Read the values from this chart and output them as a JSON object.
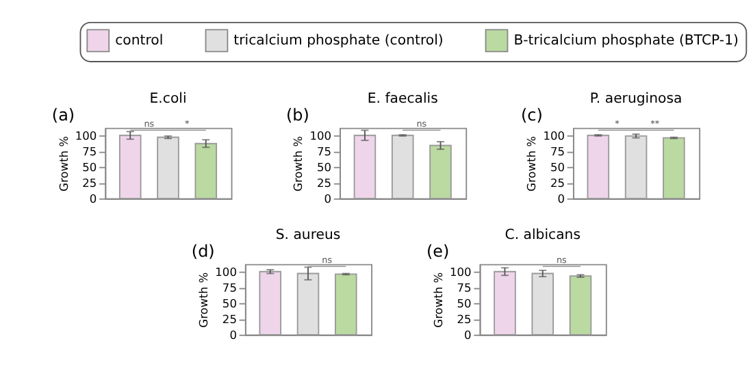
{
  "chart_data": [
    {
      "type": "bar",
      "title": "E.coli",
      "ylabel": "Growth %",
      "categories": [
        null,
        null,
        null
      ],
      "legend": "top",
      "grid": false,
      "ylim": [
        0,
        112
      ],
      "yticks": [
        0,
        25,
        50,
        75,
        100
      ],
      "series": [
        {
          "name": "control",
          "color": "#efd5ea",
          "values": [
            100,
            null,
            null
          ],
          "errors": [
            6,
            null,
            null
          ]
        },
        {
          "name": "tricalcium phosphate (control)",
          "color": "#e0e0e0",
          "values": [
            null,
            97,
            null
          ],
          "errors": [
            null,
            2,
            null
          ]
        },
        {
          "name": "B-tricalcium phosphate (BTCP-1)",
          "color": "#badaa1",
          "values": [
            null,
            null,
            87
          ],
          "errors": [
            null,
            null,
            6
          ]
        }
      ],
      "annotations": [
        "(a)",
        "ns",
        "*"
      ]
    },
    {
      "type": "bar",
      "title": "E. faecalis",
      "ylabel": "Growth %",
      "categories": [
        null,
        null,
        null
      ],
      "grid": false,
      "ylim": [
        0,
        112
      ],
      "yticks": [
        0,
        25,
        50,
        75,
        100
      ],
      "series": [
        {
          "color": "#efd5ea",
          "values": [
            100,
            null,
            null
          ],
          "errors": [
            8,
            null,
            null
          ]
        },
        {
          "color": "#e0e0e0",
          "values": [
            null,
            100,
            null
          ],
          "errors": [
            null,
            1,
            null
          ]
        },
        {
          "color": "#badaa1",
          "values": [
            null,
            null,
            84
          ],
          "errors": [
            null,
            null,
            6
          ]
        }
      ],
      "annotations": [
        "(b)",
        "ns"
      ]
    },
    {
      "type": "bar",
      "title": "P. aeruginosa",
      "ylabel": "Growth %",
      "categories": [
        null,
        null,
        null
      ],
      "grid": false,
      "ylim": [
        0,
        112
      ],
      "yticks": [
        0,
        25,
        50,
        75,
        100
      ],
      "series": [
        {
          "color": "#efd5ea",
          "values": [
            100,
            null,
            null
          ],
          "errors": [
            1,
            null,
            null
          ]
        },
        {
          "color": "#e0e0e0",
          "values": [
            null,
            99,
            null
          ],
          "errors": [
            null,
            3,
            null
          ]
        },
        {
          "color": "#badaa1",
          "values": [
            null,
            null,
            96
          ],
          "errors": [
            null,
            null,
            1
          ]
        }
      ],
      "annotations": [
        "(c)",
        "*",
        "**"
      ]
    },
    {
      "type": "bar",
      "title": "S. aureus",
      "ylabel": "Growth %",
      "categories": [
        null,
        null,
        null
      ],
      "grid": false,
      "ylim": [
        0,
        112
      ],
      "yticks": [
        0,
        25,
        50,
        75,
        100
      ],
      "series": [
        {
          "color": "#efd5ea",
          "values": [
            100,
            null,
            null
          ],
          "errors": [
            3,
            null,
            null
          ]
        },
        {
          "color": "#e0e0e0",
          "values": [
            null,
            97,
            null
          ],
          "errors": [
            null,
            10,
            null
          ]
        },
        {
          "color": "#badaa1",
          "values": [
            null,
            null,
            96
          ],
          "errors": [
            null,
            null,
            1
          ]
        }
      ],
      "annotations": [
        "(d)",
        "ns"
      ]
    },
    {
      "type": "bar",
      "title": "C. albicans",
      "ylabel": "Growth %",
      "categories": [
        null,
        null,
        null
      ],
      "grid": false,
      "ylim": [
        0,
        112
      ],
      "yticks": [
        0,
        25,
        50,
        75,
        100
      ],
      "series": [
        {
          "color": "#efd5ea",
          "values": [
            100,
            null,
            null
          ],
          "errors": [
            6,
            null,
            null
          ]
        },
        {
          "color": "#e0e0e0",
          "values": [
            null,
            97,
            null
          ],
          "errors": [
            null,
            5,
            null
          ]
        },
        {
          "color": "#badaa1",
          "values": [
            null,
            null,
            93
          ],
          "errors": [
            null,
            null,
            2
          ]
        }
      ],
      "annotations": [
        "(e)",
        "ns"
      ]
    }
  ]
}
